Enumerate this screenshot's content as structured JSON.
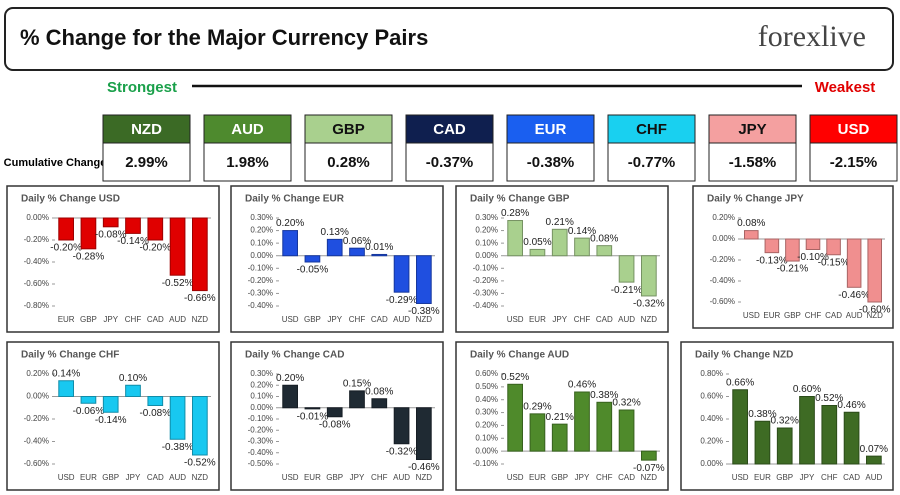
{
  "header": {
    "title": "% Change for the Major Currency Pairs",
    "logo": "forexlive"
  },
  "cumulative": {
    "strongest": "Strongest",
    "weakest": "Weakest",
    "label": "Cumulative Change",
    "categories": [
      "NZD",
      "AUD",
      "GBP",
      "CAD",
      "EUR",
      "CHF",
      "JPY",
      "USD"
    ],
    "values": [
      2.99,
      1.98,
      0.28,
      -0.37,
      -0.38,
      -0.77,
      -1.58,
      -2.15
    ],
    "value_labels": [
      "2.99%",
      "1.98%",
      "0.28%",
      "-0.37%",
      "-0.38%",
      "-0.77%",
      "-1.58%",
      "-2.15%"
    ],
    "colors": [
      "#3b6a25",
      "#4e8a2e",
      "#a9d08e",
      "#0f1f4f",
      "#1a5ff0",
      "#19d0f0",
      "#f4a0a0",
      "#ff0000"
    ]
  },
  "chart_data": [
    {
      "type": "bar",
      "title": "Daily % Change USD",
      "categories": [
        "EUR",
        "GBP",
        "JPY",
        "CHF",
        "CAD",
        "AUD",
        "NZD"
      ],
      "values": [
        -0.2,
        -0.28,
        -0.08,
        -0.14,
        -0.2,
        -0.52,
        -0.66
      ],
      "value_labels": [
        "-0.20%",
        "-0.28%",
        "-0.08%",
        "-0.14%",
        "-0.20%",
        "-0.52%",
        "-0.66%"
      ],
      "color": "#e00000",
      "ylim": [
        -0.8,
        0
      ],
      "yticks": [
        {
          "value": 0,
          "label": "0.00%"
        },
        {
          "value": -0.2,
          "label": "-0.20%"
        },
        {
          "value": -0.4,
          "label": "-0.40%"
        },
        {
          "value": -0.6,
          "label": "-0.60%"
        },
        {
          "value": -0.8,
          "label": "-0.80%"
        }
      ]
    },
    {
      "type": "bar",
      "title": "Daily % Change EUR",
      "categories": [
        "USD",
        "GBP",
        "JPY",
        "CHF",
        "CAD",
        "AUD",
        "NZD"
      ],
      "values": [
        0.2,
        -0.05,
        0.13,
        0.06,
        0.01,
        -0.29,
        -0.38
      ],
      "value_labels": [
        "0.20%",
        "-0.05%",
        "0.13%",
        "0.06%",
        "0.01%",
        "-0.29%",
        "-0.38%"
      ],
      "color": "#1f4fe0",
      "ylim": [
        -0.4,
        0.3
      ],
      "yticks": [
        {
          "value": 0.3,
          "label": "0.30%"
        },
        {
          "value": 0.2,
          "label": "0.20%"
        },
        {
          "value": 0.1,
          "label": "0.10%"
        },
        {
          "value": 0,
          "label": "0.00%"
        },
        {
          "value": -0.1,
          "label": "-0.10%"
        },
        {
          "value": -0.2,
          "label": "-0.20%"
        },
        {
          "value": -0.3,
          "label": "-0.30%"
        },
        {
          "value": -0.4,
          "label": "-0.40%"
        }
      ]
    },
    {
      "type": "bar",
      "title": "Daily % Change GBP",
      "categories": [
        "USD",
        "EUR",
        "JPY",
        "CHF",
        "CAD",
        "AUD",
        "NZD"
      ],
      "values": [
        0.28,
        0.05,
        0.21,
        0.14,
        0.08,
        -0.21,
        -0.32
      ],
      "value_labels": [
        "0.28%",
        "0.05%",
        "0.21%",
        "0.14%",
        "0.08%",
        "-0.21%",
        "-0.32%"
      ],
      "color": "#a9d08e",
      "ylim": [
        -0.4,
        0.3
      ],
      "yticks": [
        {
          "value": 0.3,
          "label": "0.30%"
        },
        {
          "value": 0.2,
          "label": "0.20%"
        },
        {
          "value": 0.1,
          "label": "0.10%"
        },
        {
          "value": 0,
          "label": "0.00%"
        },
        {
          "value": -0.1,
          "label": "-0.10%"
        },
        {
          "value": -0.2,
          "label": "-0.20%"
        },
        {
          "value": -0.3,
          "label": "-0.30%"
        },
        {
          "value": -0.4,
          "label": "-0.40%"
        }
      ]
    },
    {
      "type": "bar",
      "title": "Daily % Change JPY",
      "categories": [
        "USD",
        "EUR",
        "GBP",
        "CHF",
        "CAD",
        "AUD",
        "NZD"
      ],
      "values": [
        0.08,
        -0.13,
        -0.21,
        -0.1,
        -0.15,
        -0.46,
        -0.6
      ],
      "value_labels": [
        "0.08%",
        "-0.13%",
        "-0.21%",
        "-0.10%",
        "-0.15%",
        "-0.46%",
        "-0.60%"
      ],
      "color": "#f08f8f",
      "ylim": [
        -0.6,
        0.2
      ],
      "yticks": [
        {
          "value": 0.2,
          "label": "0.20%"
        },
        {
          "value": 0,
          "label": "0.00%"
        },
        {
          "value": -0.2,
          "label": "-0.20%"
        },
        {
          "value": -0.4,
          "label": "-0.40%"
        },
        {
          "value": -0.6,
          "label": "-0.60%"
        }
      ]
    },
    {
      "type": "bar",
      "title": "Daily % Change CHF",
      "categories": [
        "USD",
        "EUR",
        "GBP",
        "JPY",
        "CAD",
        "AUD",
        "NZD"
      ],
      "values": [
        0.14,
        -0.06,
        -0.14,
        0.1,
        -0.08,
        -0.38,
        -0.52
      ],
      "value_labels": [
        "0.14%",
        "-0.06%",
        "-0.14%",
        "0.10%",
        "-0.08%",
        "-0.38%",
        "-0.52%"
      ],
      "color": "#18c8f0",
      "ylim": [
        -0.6,
        0.2
      ],
      "yticks": [
        {
          "value": 0.2,
          "label": "0.20%"
        },
        {
          "value": 0,
          "label": "0.00%"
        },
        {
          "value": -0.2,
          "label": "-0.20%"
        },
        {
          "value": -0.4,
          "label": "-0.40%"
        },
        {
          "value": -0.6,
          "label": "-0.60%"
        }
      ]
    },
    {
      "type": "bar",
      "title": "Daily % Change CAD",
      "categories": [
        "USD",
        "EUR",
        "GBP",
        "JPY",
        "CHF",
        "AUD",
        "NZD"
      ],
      "values": [
        0.2,
        -0.01,
        -0.08,
        0.15,
        0.08,
        -0.32,
        -0.46
      ],
      "value_labels": [
        "0.20%",
        "-0.01%",
        "-0.08%",
        "0.15%",
        "0.08%",
        "-0.32%",
        "-0.46%"
      ],
      "color": "#1f2a33",
      "ylim": [
        -0.5,
        0.3
      ],
      "yticks": [
        {
          "value": 0.3,
          "label": "0.30%"
        },
        {
          "value": 0.2,
          "label": "0.20%"
        },
        {
          "value": 0.1,
          "label": "0.10%"
        },
        {
          "value": 0,
          "label": "0.00%"
        },
        {
          "value": -0.1,
          "label": "-0.10%"
        },
        {
          "value": -0.2,
          "label": "-0.20%"
        },
        {
          "value": -0.3,
          "label": "-0.30%"
        },
        {
          "value": -0.4,
          "label": "-0.40%"
        },
        {
          "value": -0.5,
          "label": "-0.50%"
        }
      ]
    },
    {
      "type": "bar",
      "title": "Daily % Change AUD",
      "categories": [
        "USD",
        "EUR",
        "GBP",
        "JPY",
        "CHF",
        "CAD",
        "NZD"
      ],
      "values": [
        0.52,
        0.29,
        0.21,
        0.46,
        0.38,
        0.32,
        -0.07
      ],
      "value_labels": [
        "0.52%",
        "0.29%",
        "0.21%",
        "0.46%",
        "0.38%",
        "0.32%",
        "-0.07%"
      ],
      "color": "#4f8a2b",
      "ylim": [
        -0.1,
        0.6
      ],
      "yticks": [
        {
          "value": 0.6,
          "label": "0.60%"
        },
        {
          "value": 0.5,
          "label": "0.50%"
        },
        {
          "value": 0.4,
          "label": "0.40%"
        },
        {
          "value": 0.3,
          "label": "0.30%"
        },
        {
          "value": 0.2,
          "label": "0.20%"
        },
        {
          "value": 0.1,
          "label": "0.10%"
        },
        {
          "value": 0,
          "label": "0.00%"
        },
        {
          "value": -0.1,
          "label": "-0.10%"
        }
      ]
    },
    {
      "type": "bar",
      "title": "Daily % Change NZD",
      "categories": [
        "USD",
        "EUR",
        "GBP",
        "JPY",
        "CHF",
        "CAD",
        "AUD"
      ],
      "values": [
        0.66,
        0.38,
        0.32,
        0.6,
        0.52,
        0.46,
        0.07
      ],
      "value_labels": [
        "0.66%",
        "0.38%",
        "0.32%",
        "0.60%",
        "0.52%",
        "0.46%",
        "0.07%"
      ],
      "color": "#3e6b24",
      "ylim": [
        0,
        0.8
      ],
      "yticks": [
        {
          "value": 0.8,
          "label": "0.80%"
        },
        {
          "value": 0.6,
          "label": "0.60%"
        },
        {
          "value": 0.4,
          "label": "0.40%"
        },
        {
          "value": 0.2,
          "label": "0.20%"
        },
        {
          "value": 0,
          "label": "0.00%"
        }
      ]
    }
  ]
}
